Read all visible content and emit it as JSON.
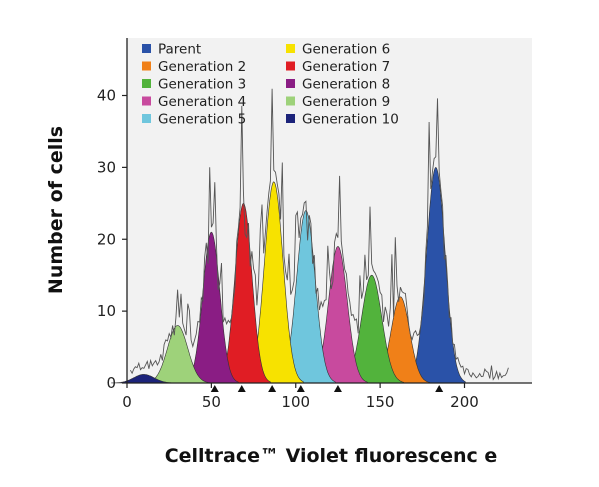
{
  "chart_data": {
    "type": "area",
    "title": "",
    "xlabel": "Celltrace™ Violet fluorescenc e",
    "ylabel": "Number of cells",
    "xlim": [
      0,
      240
    ],
    "ylim": [
      0,
      48
    ],
    "xticks": [
      0,
      50,
      100,
      150,
      200
    ],
    "yticks": [
      0,
      10,
      20,
      30,
      40
    ],
    "grid": false,
    "legend_position": "top-left",
    "series": [
      {
        "name": "Parent",
        "color": "#2a52a8",
        "center": 183,
        "peak": 30,
        "width": 5.5
      },
      {
        "name": "Generation 2",
        "color": "#f08018",
        "center": 162,
        "peak": 12,
        "width": 5.5
      },
      {
        "name": "Generation 3",
        "color": "#52b33c",
        "center": 145,
        "peak": 15,
        "width": 6
      },
      {
        "name": "Generation 4",
        "color": "#c84a9e",
        "center": 125,
        "peak": 19,
        "width": 5.5
      },
      {
        "name": "Generation 5",
        "color": "#6fc6dd",
        "center": 106,
        "peak": 24,
        "width": 5.5
      },
      {
        "name": "Generation 6",
        "color": "#f7e200",
        "center": 87,
        "peak": 28,
        "width": 5.5
      },
      {
        "name": "Generation 7",
        "color": "#e01d24",
        "center": 69,
        "peak": 25,
        "width": 5
      },
      {
        "name": "Generation 8",
        "color": "#8a1d84",
        "center": 50,
        "peak": 21,
        "width": 5
      },
      {
        "name": "Generation 9",
        "color": "#9ed27a",
        "center": 30,
        "peak": 8,
        "width": 6
      },
      {
        "name": "Generation 10",
        "color": "#1c237a",
        "center": 10,
        "peak": 1.2,
        "width": 6
      }
    ],
    "raw_histogram_color": "#555555",
    "markers": [
      52,
      68,
      86,
      103,
      125,
      185
    ]
  }
}
